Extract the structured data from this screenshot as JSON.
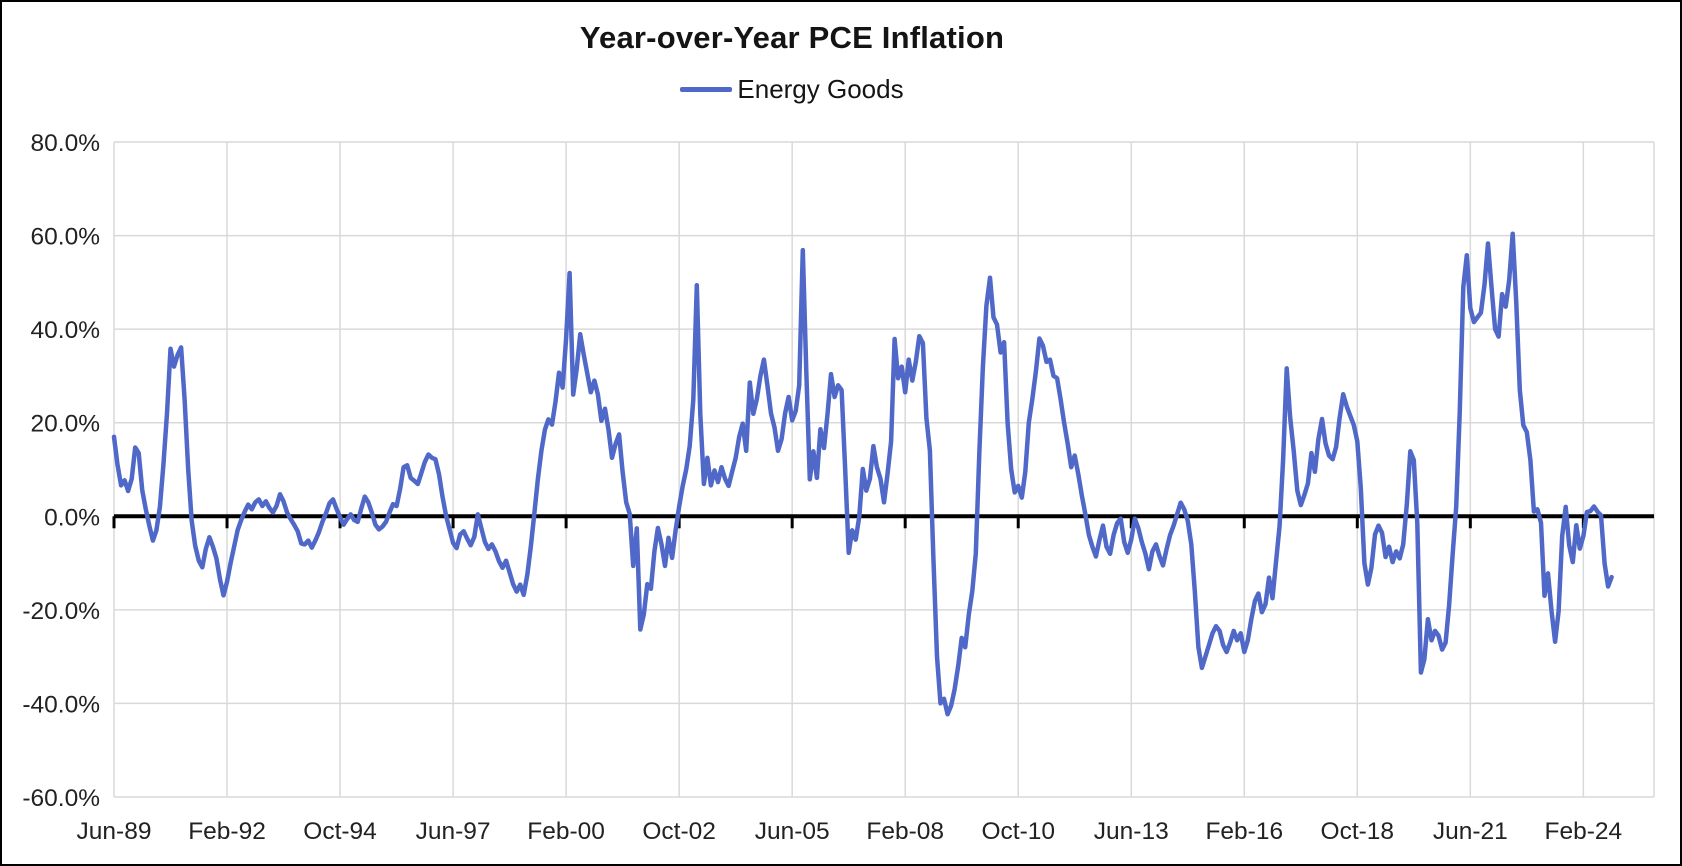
{
  "window": {
    "background": "#ffffff",
    "border_color": "#000000"
  },
  "chart_data": {
    "type": "line",
    "title": "Year-over-Year PCE Inflation",
    "legend": {
      "position": "top",
      "entries": [
        {
          "label": "Energy Goods",
          "color": "#5069c8"
        }
      ]
    },
    "grid": true,
    "colors": {
      "gridline": "#d9d9d9",
      "plot_border": "#d9d9d9",
      "zero_axis": "#000000",
      "tick_text": "#222222"
    },
    "x": {
      "unit": "month",
      "start": "Jun-1989",
      "end": "Oct-2024",
      "tick_every_months": 32,
      "axis_span_months": 436,
      "tick_labels": [
        "Jun-89",
        "Feb-92",
        "Oct-94",
        "Jun-97",
        "Feb-00",
        "Oct-02",
        "Jun-05",
        "Feb-08",
        "Oct-10",
        "Jun-13",
        "Feb-16",
        "Oct-18",
        "Jun-21",
        "Feb-24"
      ]
    },
    "y": {
      "unit": "percent",
      "min": -60,
      "max": 80,
      "step": 20,
      "tick_labels": [
        "80.0%",
        "60.0%",
        "40.0%",
        "20.0%",
        "0.0%",
        "-20.0%",
        "-40.0%",
        "-60.0%"
      ]
    },
    "series": [
      {
        "name": "Energy Goods",
        "color": "#5069c8",
        "width": 4.5,
        "start": "Jun-1989",
        "interval": "monthly",
        "values": [
          17.0,
          11.0,
          6.6,
          7.7,
          5.4,
          8.0,
          14.7,
          13.5,
          5.5,
          1.5,
          -2.0,
          -5.2,
          -3.0,
          2.0,
          11.0,
          22.0,
          35.8,
          32.0,
          34.5,
          36.1,
          25.0,
          10.0,
          -1.0,
          -6.3,
          -9.5,
          -10.9,
          -7.0,
          -4.5,
          -6.5,
          -9.0,
          -13.5,
          -16.9,
          -14.0,
          -10.0,
          -6.5,
          -3.0,
          -0.8,
          1.0,
          2.5,
          1.5,
          3.0,
          3.6,
          2.2,
          3.2,
          1.8,
          0.8,
          2.2,
          4.7,
          3.2,
          0.8,
          -0.6,
          -1.8,
          -3.2,
          -5.8,
          -6.0,
          -5.2,
          -6.7,
          -5.2,
          -3.4,
          -1.2,
          0.6,
          2.8,
          3.6,
          1.6,
          -0.2,
          -1.8,
          -0.6,
          0.4,
          -0.8,
          -1.2,
          1.6,
          4.2,
          3.0,
          0.8,
          -1.8,
          -2.8,
          -2.2,
          -1.2,
          0.8,
          2.6,
          2.2,
          5.8,
          10.5,
          10.9,
          8.2,
          7.6,
          6.9,
          9.2,
          11.6,
          13.2,
          12.5,
          12.2,
          9.0,
          4.2,
          0.2,
          -2.8,
          -5.7,
          -6.8,
          -3.9,
          -3.2,
          -4.8,
          -6.2,
          -4.4,
          0.4,
          -2.5,
          -5.5,
          -7.0,
          -6.0,
          -7.5,
          -9.6,
          -11.0,
          -9.5,
          -12.0,
          -14.5,
          -16.1,
          -14.6,
          -16.8,
          -12.5,
          -6.5,
          0.5,
          8.0,
          14.0,
          18.5,
          20.7,
          19.6,
          24.5,
          30.7,
          27.5,
          38.0,
          52.0,
          26.0,
          31.5,
          38.9,
          34.5,
          30.5,
          26.5,
          29.0,
          26.0,
          20.4,
          23.0,
          18.5,
          12.5,
          15.5,
          17.5,
          9.5,
          3.0,
          0.5,
          -10.6,
          -2.6,
          -24.2,
          -21.0,
          -14.5,
          -15.5,
          -7.5,
          -2.5,
          -6.0,
          -10.6,
          -4.6,
          -8.9,
          -3.0,
          2.0,
          6.5,
          10.0,
          15.0,
          24.9,
          49.4,
          21.8,
          6.9,
          12.5,
          6.6,
          9.8,
          7.3,
          10.5,
          8.0,
          6.5,
          9.5,
          12.5,
          17.0,
          19.8,
          14.0,
          28.6,
          21.9,
          25.0,
          30.0,
          33.5,
          28.0,
          22.0,
          19.0,
          14.0,
          16.5,
          22.0,
          25.5,
          20.5,
          22.5,
          28.0,
          56.9,
          31.0,
          7.9,
          13.9,
          8.2,
          18.6,
          14.6,
          21.8,
          30.4,
          25.5,
          28.0,
          27.0,
          10.4,
          -7.8,
          -3.0,
          -5.0,
          0.0,
          10.1,
          5.5,
          8.0,
          15.0,
          10.5,
          8.0,
          3.0,
          9.0,
          16.0,
          37.9,
          29.5,
          32.0,
          26.5,
          33.5,
          29.0,
          33.0,
          38.5,
          37.0,
          21.0,
          14.0,
          -9.0,
          -30.0,
          -40.0,
          -39.0,
          -42.3,
          -40.5,
          -37.0,
          -32.0,
          -26.0,
          -28.0,
          -21.0,
          -16.0,
          -8.0,
          14.0,
          32.0,
          45.0,
          51.0,
          42.5,
          41.0,
          35.0,
          37.2,
          20.0,
          10.0,
          5.1,
          6.5,
          4.0,
          9.5,
          20.0,
          25.0,
          31.0,
          38.0,
          36.5,
          33.0,
          33.5,
          30.0,
          29.5,
          25.0,
          20.0,
          15.5,
          10.5,
          13.0,
          9.0,
          4.5,
          0.5,
          -4.0,
          -6.5,
          -8.6,
          -5.0,
          -2.0,
          -6.5,
          -8.0,
          -4.0,
          -1.5,
          -0.5,
          -5.5,
          -7.8,
          -5.0,
          -0.5,
          -2.5,
          -5.5,
          -8.0,
          -11.3,
          -7.5,
          -6.0,
          -8.5,
          -10.5,
          -7.0,
          -4.0,
          -2.0,
          0.5,
          2.9,
          1.5,
          -1.0,
          -6.0,
          -16.0,
          -28.0,
          -32.4,
          -30.0,
          -27.5,
          -25.0,
          -23.5,
          -24.5,
          -27.5,
          -29.0,
          -27.0,
          -24.5,
          -26.5,
          -25.0,
          -29.0,
          -26.5,
          -22.0,
          -18.1,
          -16.5,
          -20.5,
          -18.8,
          -13.1,
          -17.5,
          -9.6,
          -2.0,
          12.0,
          31.6,
          21.0,
          14.0,
          5.5,
          2.4,
          4.5,
          7.0,
          13.5,
          9.5,
          16.5,
          20.8,
          15.6,
          13.0,
          12.2,
          14.8,
          21.0,
          26.1,
          23.5,
          21.5,
          19.5,
          16.0,
          6.0,
          -10.0,
          -14.6,
          -11.0,
          -3.9,
          -2.0,
          -3.5,
          -8.7,
          -6.5,
          -9.8,
          -7.5,
          -9.0,
          -6.0,
          2.5,
          13.9,
          12.0,
          -1.5,
          -33.4,
          -30.5,
          -22.0,
          -26.5,
          -24.5,
          -25.5,
          -28.5,
          -27.0,
          -19.0,
          -8.0,
          2.0,
          22.0,
          49.0,
          55.8,
          44.5,
          41.5,
          42.5,
          43.5,
          49.5,
          58.3,
          49.0,
          40.0,
          38.4,
          47.5,
          44.8,
          50.5,
          60.4,
          46.0,
          27.0,
          19.5,
          18.0,
          12.0,
          1.0,
          1.5,
          -1.4,
          -17.0,
          -12.2,
          -20.4,
          -26.8,
          -20.3,
          -4.2,
          2.0,
          -6.2,
          -9.8,
          -1.9,
          -6.9,
          -4.2,
          0.9,
          1.1,
          2.1,
          1.0,
          0.2,
          -10.1,
          -15.0,
          -13.0
        ]
      }
    ]
  }
}
